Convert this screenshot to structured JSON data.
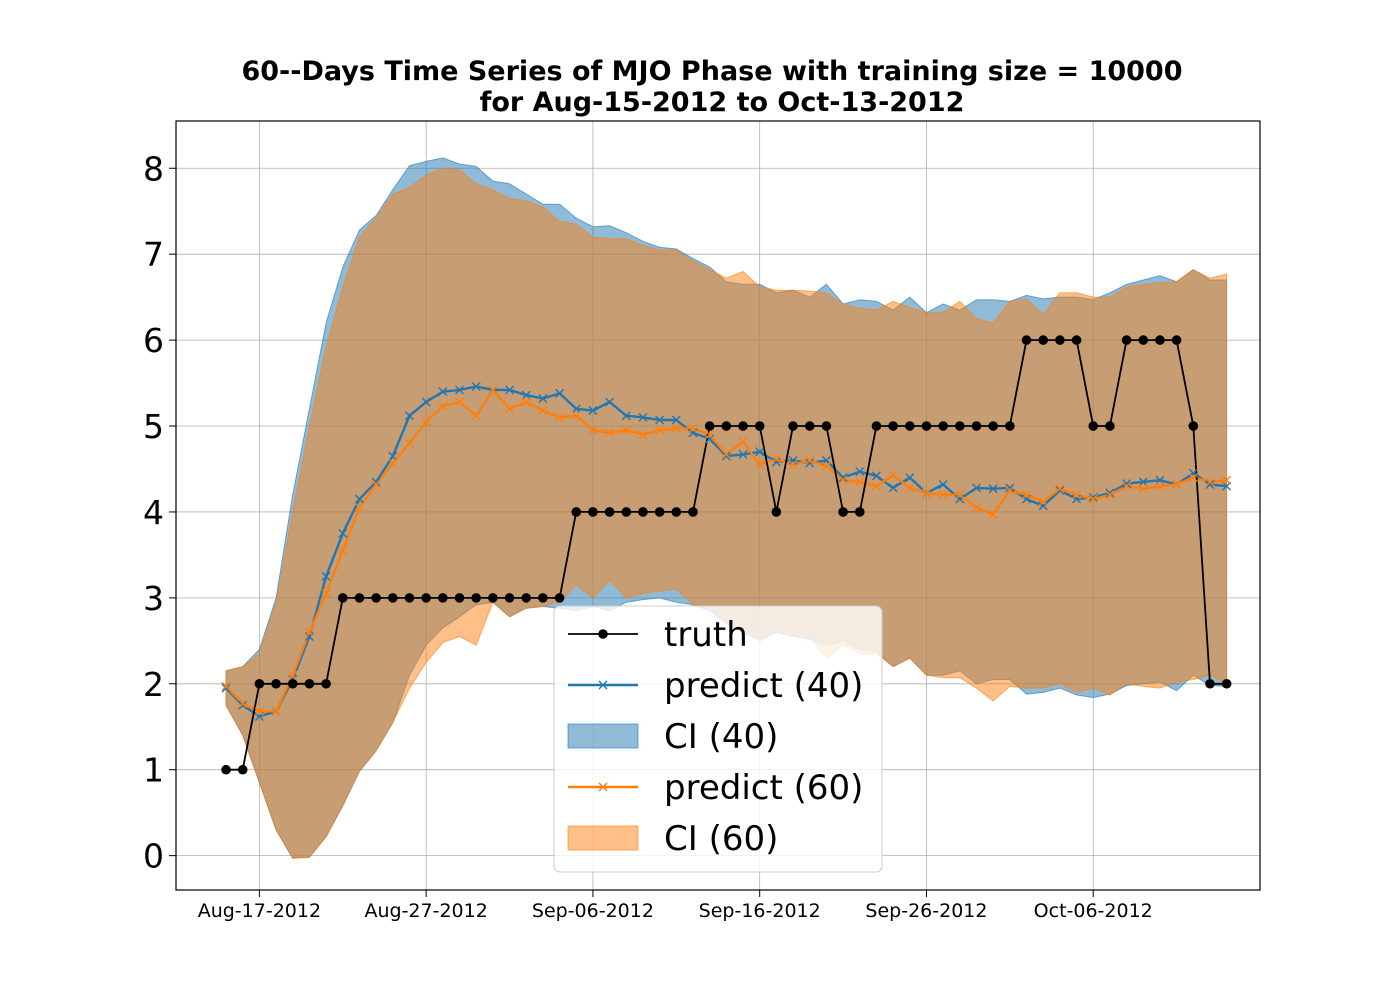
{
  "chart_data": {
    "type": "line",
    "title": "60--Days Time Series of MJO Phase with training size = 10000",
    "subtitle": "for Aug-15-2012 to Oct-13-2012",
    "xlabel": "",
    "ylabel": "",
    "x_start": "Aug-15-2012",
    "x_end": "Oct-13-2012",
    "xlim": [
      "Aug-12-2012",
      "Oct-16-2012"
    ],
    "ylim": [
      -0.4,
      8.55
    ],
    "x_ticks": [
      "Aug-17-2012",
      "Aug-27-2012",
      "Sep-06-2012",
      "Sep-16-2012",
      "Sep-26-2012",
      "Oct-06-2012"
    ],
    "y_ticks": [
      0,
      1,
      2,
      3,
      4,
      5,
      6,
      7,
      8
    ],
    "grid": true,
    "legend_position": "lower-center",
    "legend": [
      "truth",
      "predict (40)",
      "CI (40)",
      "predict (60)",
      "CI (60)"
    ],
    "colors": {
      "truth": "#000000",
      "predict40": "#1f77b4",
      "predict60": "#ff7f0e",
      "ci40_fill": "#1f77b4",
      "ci60_fill": "#ff7f0e"
    },
    "series": [
      {
        "name": "truth",
        "values": [
          1,
          1,
          2,
          2,
          2,
          2,
          2,
          3,
          3,
          3,
          3,
          3,
          3,
          3,
          3,
          3,
          3,
          3,
          3,
          3,
          3,
          4,
          4,
          4,
          4,
          4,
          4,
          4,
          4,
          5,
          5,
          5,
          5,
          4,
          5,
          5,
          5,
          4,
          4,
          5,
          5,
          5,
          5,
          5,
          5,
          5,
          5,
          5,
          6,
          6,
          6,
          6,
          5,
          5,
          6,
          6,
          6,
          6,
          5,
          2,
          2
        ]
      },
      {
        "name": "predict (40)",
        "values": [
          1.95,
          1.75,
          1.62,
          1.68,
          2.05,
          2.55,
          3.25,
          3.75,
          4.15,
          4.35,
          4.65,
          5.12,
          5.28,
          5.4,
          5.42,
          5.46,
          5.42,
          5.42,
          5.36,
          5.32,
          5.38,
          5.2,
          5.18,
          5.28,
          5.12,
          5.1,
          5.07,
          5.07,
          4.92,
          4.85,
          4.65,
          4.67,
          4.7,
          4.58,
          4.6,
          4.57,
          4.6,
          4.4,
          4.47,
          4.42,
          4.28,
          4.4,
          4.22,
          4.32,
          4.15,
          4.28,
          4.27,
          4.28,
          4.15,
          4.07,
          4.25,
          4.15,
          4.17,
          4.22,
          4.33,
          4.35,
          4.37,
          4.32,
          4.45,
          4.32,
          4.3
        ]
      },
      {
        "name": "predict (60)",
        "values": [
          1.97,
          1.77,
          1.68,
          1.68,
          2.1,
          2.6,
          3.05,
          3.55,
          4.05,
          4.32,
          4.57,
          4.8,
          5.05,
          5.23,
          5.28,
          5.12,
          5.42,
          5.2,
          5.28,
          5.18,
          5.1,
          5.12,
          4.95,
          4.92,
          4.95,
          4.9,
          4.95,
          4.97,
          4.97,
          4.9,
          4.67,
          4.82,
          4.55,
          4.62,
          4.55,
          4.6,
          4.53,
          4.37,
          4.35,
          4.3,
          4.43,
          4.28,
          4.22,
          4.2,
          4.2,
          4.05,
          3.97,
          4.25,
          4.2,
          4.12,
          4.27,
          4.2,
          4.15,
          4.2,
          4.3,
          4.27,
          4.3,
          4.32,
          4.4,
          4.35,
          4.37
        ]
      },
      {
        "name": "CI (40)",
        "lower": [
          1.75,
          1.4,
          0.85,
          0.3,
          -0.03,
          -0.02,
          0.22,
          0.58,
          0.98,
          1.22,
          1.55,
          2.1,
          2.45,
          2.65,
          2.78,
          2.92,
          2.95,
          2.78,
          2.88,
          2.9,
          2.88,
          2.85,
          2.9,
          2.85,
          2.95,
          2.98,
          3.0,
          2.95,
          2.92,
          2.85,
          2.7,
          2.6,
          2.5,
          2.6,
          2.55,
          2.52,
          2.45,
          2.5,
          2.4,
          2.38,
          2.2,
          2.3,
          2.1,
          2.1,
          2.15,
          2.0,
          2.05,
          2.05,
          1.88,
          1.9,
          1.95,
          1.87,
          1.84,
          1.88,
          1.98,
          2.0,
          2.02,
          1.92,
          2.1,
          1.98,
          1.97
        ],
        "upper": [
          2.15,
          2.2,
          2.4,
          3.0,
          4.2,
          5.2,
          6.2,
          6.85,
          7.28,
          7.45,
          7.75,
          8.03,
          8.08,
          8.12,
          8.05,
          8.02,
          7.85,
          7.82,
          7.7,
          7.58,
          7.58,
          7.42,
          7.32,
          7.33,
          7.25,
          7.15,
          7.08,
          7.06,
          6.95,
          6.85,
          6.68,
          6.65,
          6.65,
          6.55,
          6.58,
          6.5,
          6.65,
          6.42,
          6.47,
          6.45,
          6.35,
          6.5,
          6.32,
          6.42,
          6.35,
          6.47,
          6.47,
          6.45,
          6.52,
          6.48,
          6.5,
          6.5,
          6.47,
          6.55,
          6.65,
          6.7,
          6.75,
          6.68,
          6.82,
          6.7,
          6.7
        ]
      },
      {
        "name": "CI (60)",
        "lower": [
          1.75,
          1.4,
          0.85,
          0.3,
          -0.03,
          -0.02,
          0.22,
          0.58,
          0.98,
          1.22,
          1.55,
          1.95,
          2.25,
          2.48,
          2.55,
          2.45,
          2.95,
          2.78,
          2.88,
          2.9,
          2.95,
          3.15,
          3.0,
          3.2,
          3.0,
          3.05,
          3.08,
          3.1,
          2.92,
          2.9,
          2.72,
          2.65,
          2.5,
          2.62,
          2.55,
          2.55,
          2.3,
          2.45,
          2.35,
          2.35,
          2.2,
          2.3,
          2.1,
          2.07,
          2.07,
          1.95,
          1.8,
          1.97,
          1.95,
          1.95,
          2.0,
          1.9,
          1.95,
          1.87,
          2.0,
          1.97,
          1.95,
          2.02,
          2.05,
          2.1,
          2.0
        ],
        "upper": [
          2.15,
          2.2,
          2.35,
          2.95,
          4.0,
          5.0,
          5.92,
          6.62,
          7.2,
          7.42,
          7.7,
          7.78,
          7.92,
          8.0,
          7.98,
          7.82,
          7.75,
          7.65,
          7.62,
          7.55,
          7.38,
          7.35,
          7.2,
          7.18,
          7.18,
          7.1,
          7.05,
          7.05,
          6.92,
          6.82,
          6.72,
          6.8,
          6.62,
          6.58,
          6.58,
          6.57,
          6.55,
          6.42,
          6.37,
          6.35,
          6.45,
          6.38,
          6.32,
          6.32,
          6.45,
          6.25,
          6.2,
          6.45,
          6.48,
          6.3,
          6.55,
          6.55,
          6.5,
          6.5,
          6.62,
          6.65,
          6.67,
          6.68,
          6.82,
          6.72,
          6.77
        ]
      }
    ]
  }
}
